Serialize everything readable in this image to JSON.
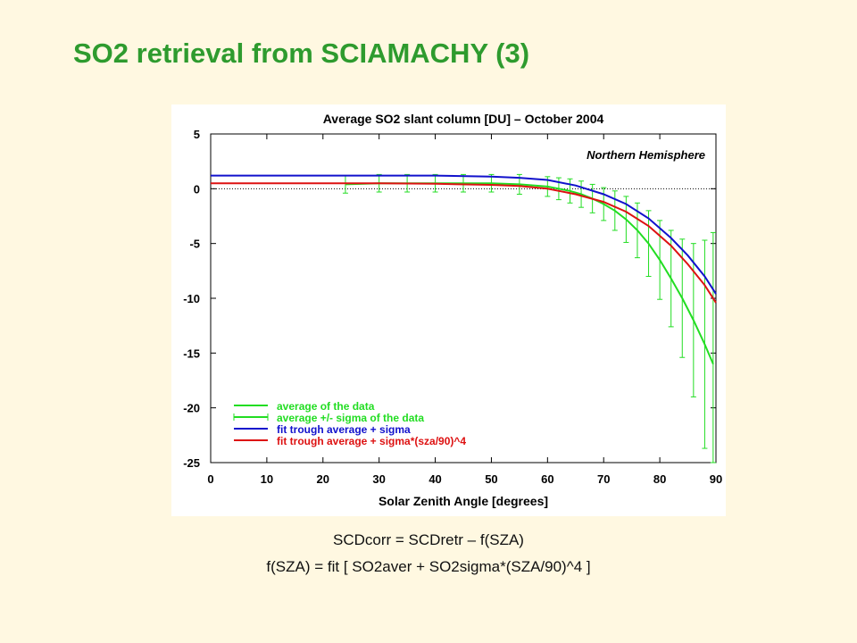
{
  "slide": {
    "title": "SO2 retrieval from SCIAMACHY (3)",
    "formula_line1": "SCDcorr = SCDretr – f(SZA)",
    "formula_line2": "f(SZA) = fit [ SO2aver + SO2sigma*(SZA/90)^4 ]"
  },
  "colors": {
    "background": "#FFF8E1",
    "title": "#2E9B2E",
    "green": "#22DD22",
    "blue": "#1111CC",
    "red": "#DD1111"
  },
  "chart_data": {
    "type": "line",
    "title": "Average SO2 slant column [DU] – October 2004",
    "annotation": "Northern Hemisphere",
    "xlabel": "Solar Zenith Angle [degrees]",
    "ylabel": "",
    "xlim": [
      0,
      90
    ],
    "ylim": [
      -25,
      5
    ],
    "xticks": [
      0,
      10,
      20,
      30,
      40,
      50,
      60,
      70,
      80,
      90
    ],
    "yticks": [
      5,
      0,
      -5,
      -10,
      -15,
      -20,
      -25
    ],
    "zero_line": "dotted",
    "legend_position": "bottom-left",
    "legend": [
      {
        "label": "average of the data",
        "color": "#22DD22",
        "style": "line"
      },
      {
        "label": "average +/- sigma of the data",
        "color": "#22DD22",
        "style": "errorbar"
      },
      {
        "label": "fit trough average + sigma",
        "color": "#1111CC",
        "style": "line"
      },
      {
        "label": "fit trough average + sigma*(sza/90)^4",
        "color": "#DD1111",
        "style": "line"
      }
    ],
    "series": [
      {
        "name": "average of the data",
        "color": "#22DD22",
        "x": [
          24,
          30,
          35,
          40,
          45,
          50,
          55,
          60,
          62,
          64,
          66,
          68,
          70,
          72,
          74,
          76,
          78,
          80,
          82,
          84,
          86,
          88,
          89.5
        ],
        "y": [
          0.4,
          0.5,
          0.5,
          0.5,
          0.5,
          0.5,
          0.4,
          0.2,
          0.0,
          -0.2,
          -0.5,
          -0.9,
          -1.4,
          -2.0,
          -2.8,
          -3.8,
          -5.0,
          -6.5,
          -8.2,
          -10.0,
          -12.0,
          -14.2,
          -16.0
        ],
        "err": [
          0.8,
          0.8,
          0.8,
          0.8,
          0.8,
          0.8,
          0.9,
          0.9,
          1.0,
          1.1,
          1.2,
          1.3,
          1.5,
          1.8,
          2.1,
          2.5,
          3.0,
          3.6,
          4.4,
          5.4,
          7.0,
          9.5,
          12.0
        ]
      },
      {
        "name": "fit trough average + sigma",
        "color": "#1111CC",
        "x": [
          0,
          10,
          20,
          30,
          40,
          50,
          55,
          60,
          65,
          70,
          74,
          78,
          82,
          85,
          88,
          90
        ],
        "y": [
          1.2,
          1.2,
          1.2,
          1.2,
          1.2,
          1.1,
          1.0,
          0.8,
          0.3,
          -0.5,
          -1.4,
          -2.7,
          -4.5,
          -6.1,
          -8.0,
          -9.6
        ]
      },
      {
        "name": "fit trough average + sigma*(sza/90)^4",
        "color": "#DD1111",
        "x": [
          0,
          10,
          20,
          30,
          40,
          50,
          55,
          60,
          65,
          70,
          74,
          78,
          82,
          85,
          88,
          90
        ],
        "y": [
          0.5,
          0.5,
          0.5,
          0.5,
          0.45,
          0.35,
          0.25,
          0.0,
          -0.5,
          -1.2,
          -2.1,
          -3.4,
          -5.2,
          -6.9,
          -8.8,
          -10.4
        ]
      }
    ]
  }
}
